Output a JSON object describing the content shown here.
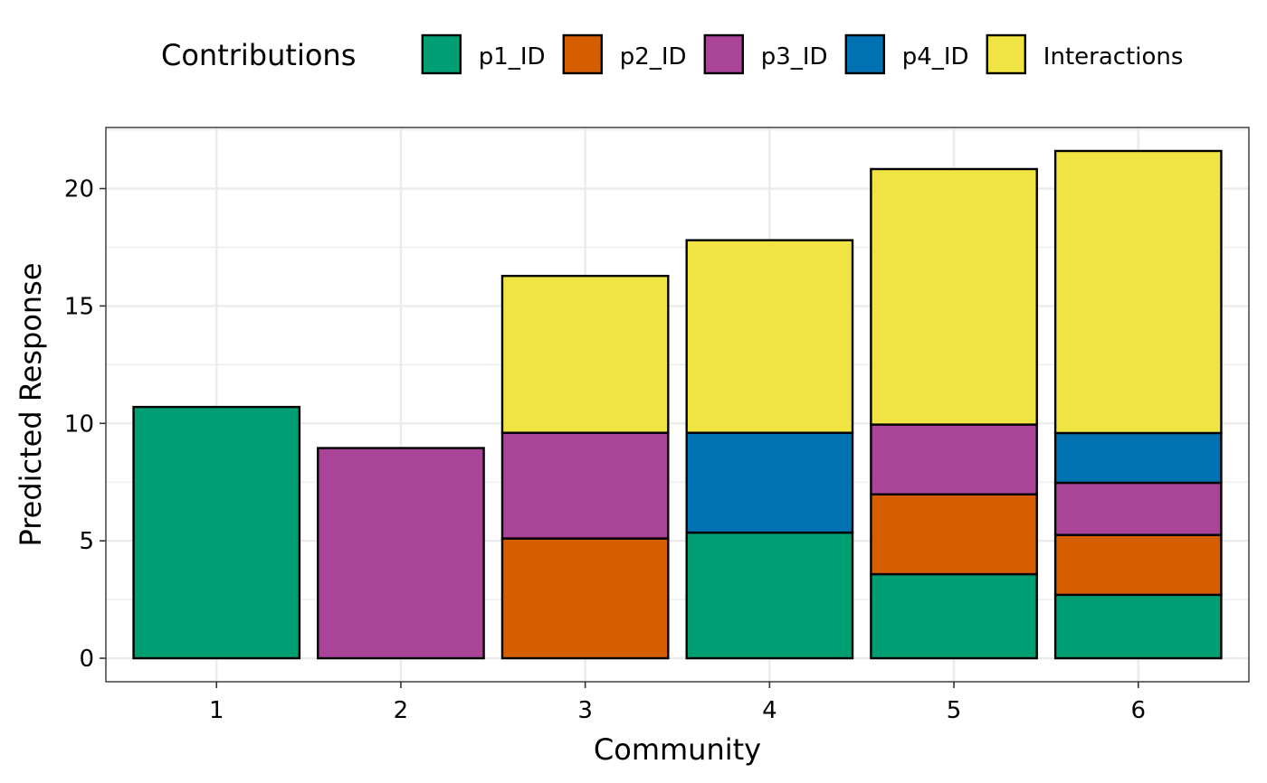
{
  "chart_data": {
    "type": "bar",
    "stacked": true,
    "title": "",
    "xlabel": "Community",
    "ylabel": "Predicted Response",
    "categories": [
      "1",
      "2",
      "3",
      "4",
      "5",
      "6"
    ],
    "xlim": [
      0.4,
      6.6
    ],
    "ylim": [
      -1.0,
      22.6
    ],
    "yticks": [
      0,
      5,
      10,
      15,
      20
    ],
    "grid": true,
    "legend": {
      "title": "Contributions",
      "position": "top"
    },
    "series": [
      {
        "name": "p1_ID",
        "color": "#009E73",
        "values": [
          10.7,
          0,
          0,
          5.35,
          3.58,
          2.7
        ]
      },
      {
        "name": "p2_ID",
        "color": "#D55E00",
        "values": [
          0,
          0,
          5.1,
          0,
          3.4,
          2.55
        ]
      },
      {
        "name": "p3_ID",
        "color": "#AA4499",
        "values": [
          0,
          8.95,
          4.5,
          0,
          2.97,
          2.22
        ]
      },
      {
        "name": "p4_ID",
        "color": "#0072B2",
        "values": [
          0,
          0,
          0,
          4.25,
          0,
          2.12
        ]
      },
      {
        "name": "Interactions",
        "color": "#F0E442",
        "values": [
          0,
          0,
          6.68,
          8.2,
          10.88,
          12.01
        ]
      }
    ]
  }
}
